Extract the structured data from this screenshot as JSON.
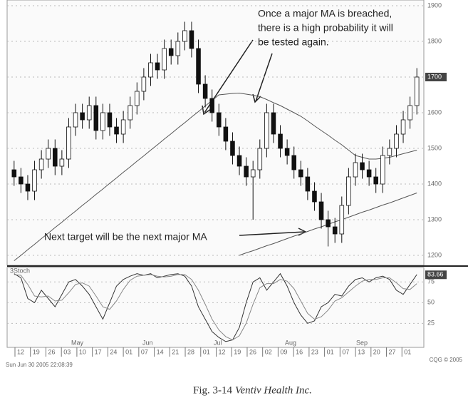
{
  "chart_data": [
    {
      "type": "candlestick",
      "open": [
        1440,
        1420,
        1400,
        1380,
        1440,
        1470,
        1500,
        1450,
        1470,
        1560,
        1600,
        1580,
        1620,
        1550,
        1600,
        1560,
        1540,
        1580,
        1620,
        1660,
        1700,
        1740,
        1720,
        1780,
        1760,
        1800,
        1830,
        1780,
        1680,
        1640,
        1600,
        1560,
        1520,
        1480,
        1450,
        1420,
        1440,
        1500,
        1600,
        1540,
        1500,
        1480,
        1440,
        1420,
        1380,
        1350,
        1300,
        1280,
        1260,
        1340,
        1420,
        1460,
        1440,
        1420,
        1400,
        1480,
        1500,
        1540,
        1580,
        1620
      ],
      "high": [
        1465,
        1445,
        1425,
        1465,
        1495,
        1525,
        1525,
        1495,
        1585,
        1625,
        1625,
        1645,
        1645,
        1625,
        1625,
        1585,
        1605,
        1645,
        1685,
        1725,
        1765,
        1765,
        1805,
        1805,
        1825,
        1855,
        1855,
        1805,
        1705,
        1665,
        1625,
        1585,
        1545,
        1505,
        1475,
        1465,
        1525,
        1625,
        1625,
        1565,
        1525,
        1505,
        1465,
        1445,
        1405,
        1375,
        1325,
        1305,
        1365,
        1445,
        1485,
        1485,
        1465,
        1445,
        1505,
        1525,
        1565,
        1605,
        1645,
        1725
      ],
      "low": [
        1395,
        1375,
        1355,
        1355,
        1415,
        1445,
        1425,
        1425,
        1445,
        1535,
        1555,
        1555,
        1525,
        1525,
        1535,
        1515,
        1515,
        1555,
        1595,
        1635,
        1675,
        1695,
        1695,
        1735,
        1735,
        1775,
        1755,
        1655,
        1615,
        1575,
        1535,
        1495,
        1455,
        1425,
        1395,
        1300,
        1415,
        1475,
        1515,
        1475,
        1455,
        1415,
        1395,
        1355,
        1325,
        1275,
        1225,
        1235,
        1235,
        1315,
        1395,
        1415,
        1395,
        1375,
        1375,
        1455,
        1475,
        1515,
        1555,
        1595
      ],
      "close": [
        1420,
        1400,
        1380,
        1440,
        1470,
        1500,
        1450,
        1470,
        1560,
        1600,
        1580,
        1620,
        1550,
        1600,
        1560,
        1540,
        1580,
        1620,
        1660,
        1700,
        1740,
        1720,
        1780,
        1760,
        1800,
        1830,
        1780,
        1680,
        1640,
        1600,
        1560,
        1520,
        1480,
        1450,
        1420,
        1440,
        1500,
        1600,
        1540,
        1500,
        1480,
        1440,
        1420,
        1380,
        1350,
        1300,
        1280,
        1260,
        1340,
        1420,
        1460,
        1440,
        1420,
        1400,
        1480,
        1500,
        1540,
        1580,
        1620,
        1700
      ],
      "up_color": "#ffffff",
      "down_color": "#111111",
      "series": [
        {
          "type": "line",
          "color": "#555555",
          "values": [
            1185,
            1200,
            1216,
            1231,
            1247,
            1262,
            1278,
            1293,
            1309,
            1324,
            1340,
            1355,
            1371,
            1386,
            1402,
            1417,
            1433,
            1448,
            1464,
            1479,
            1495,
            1510,
            1526,
            1541,
            1557,
            1572,
            1588,
            1603,
            1619,
            1634,
            1650,
            1652,
            1654,
            1655,
            1652,
            1649,
            1645,
            1637,
            1628,
            1620,
            1610,
            1600,
            1590,
            1577,
            1563,
            1550,
            1537,
            1523,
            1510,
            1495,
            1480,
            1475,
            1470,
            1470,
            1472,
            1475,
            1480,
            1485,
            1490,
            1495
          ]
        },
        {
          "type": "line",
          "color": "#555555",
          "values": [
            null,
            null,
            null,
            null,
            null,
            null,
            null,
            null,
            null,
            null,
            null,
            null,
            null,
            null,
            null,
            null,
            null,
            null,
            null,
            null,
            null,
            null,
            null,
            null,
            null,
            null,
            null,
            null,
            null,
            null,
            null,
            null,
            null,
            1200,
            1207,
            1213,
            1220,
            1227,
            1233,
            1240,
            1247,
            1254,
            1260,
            1267,
            1274,
            1280,
            1287,
            1294,
            1300,
            1307,
            1314,
            1321,
            1327,
            1334,
            1341,
            1347,
            1354,
            1361,
            1368,
            1375
          ]
        }
      ],
      "ylim": [
        1172,
        1916
      ],
      "yticks": [
        1200,
        1300,
        1400,
        1500,
        1600,
        1700,
        1800,
        1900
      ],
      "last_value": 1700,
      "grid": true,
      "annotations": [
        {
          "lines": [
            "Once a major MA is breached,",
            "there is a high probability it will",
            "be tested again."
          ]
        },
        {
          "lines": [
            "Next target will be the next major MA"
          ]
        }
      ]
    },
    {
      "type": "line",
      "label": "3Stoch",
      "series": [
        {
          "color": "#333333",
          "values": [
            85,
            80,
            55,
            50,
            65,
            55,
            45,
            60,
            75,
            78,
            70,
            60,
            45,
            30,
            50,
            70,
            78,
            82,
            85,
            83,
            85,
            80,
            82,
            84,
            85,
            82,
            70,
            45,
            30,
            15,
            8,
            3,
            5,
            20,
            50,
            75,
            80,
            65,
            75,
            85,
            70,
            50,
            35,
            25,
            28,
            45,
            50,
            60,
            58,
            70,
            78,
            80,
            75,
            80,
            82,
            78,
            65,
            60,
            72,
            84
          ]
        },
        {
          "color": "#888888",
          "values": [
            84,
            83,
            72,
            58,
            57,
            58,
            52,
            53,
            62,
            72,
            74,
            70,
            58,
            45,
            42,
            52,
            66,
            77,
            82,
            83,
            84,
            82,
            81,
            82,
            84,
            84,
            78,
            65,
            48,
            30,
            17,
            9,
            5,
            10,
            25,
            48,
            68,
            73,
            73,
            78,
            76,
            67,
            52,
            37,
            30,
            33,
            41,
            52,
            56,
            63,
            70,
            76,
            78,
            78,
            80,
            80,
            74,
            67,
            66,
            73
          ]
        }
      ],
      "ylim": [
        -4,
        92.5
      ],
      "yticks": [
        25,
        50,
        75
      ],
      "last_value": 83.66,
      "grid": true,
      "months": [
        "May",
        "Jun",
        "Jul",
        "Aug",
        "Sep"
      ],
      "date_labels": [
        "12",
        "19",
        "26",
        "03",
        "10",
        "17",
        "24",
        "01",
        "07",
        "14",
        "21",
        "28",
        "01",
        "12",
        "19",
        "26",
        "02",
        "09",
        "16",
        "23",
        "01",
        "07",
        "13",
        "20",
        "27",
        "01"
      ]
    }
  ],
  "footer": {
    "timestamp": "Sun Jun 30 2005 22:08:39",
    "copyright": "CQG © 2005"
  },
  "caption": {
    "label": "Fig. 3-14",
    "name": "Ventiv Health Inc."
  }
}
